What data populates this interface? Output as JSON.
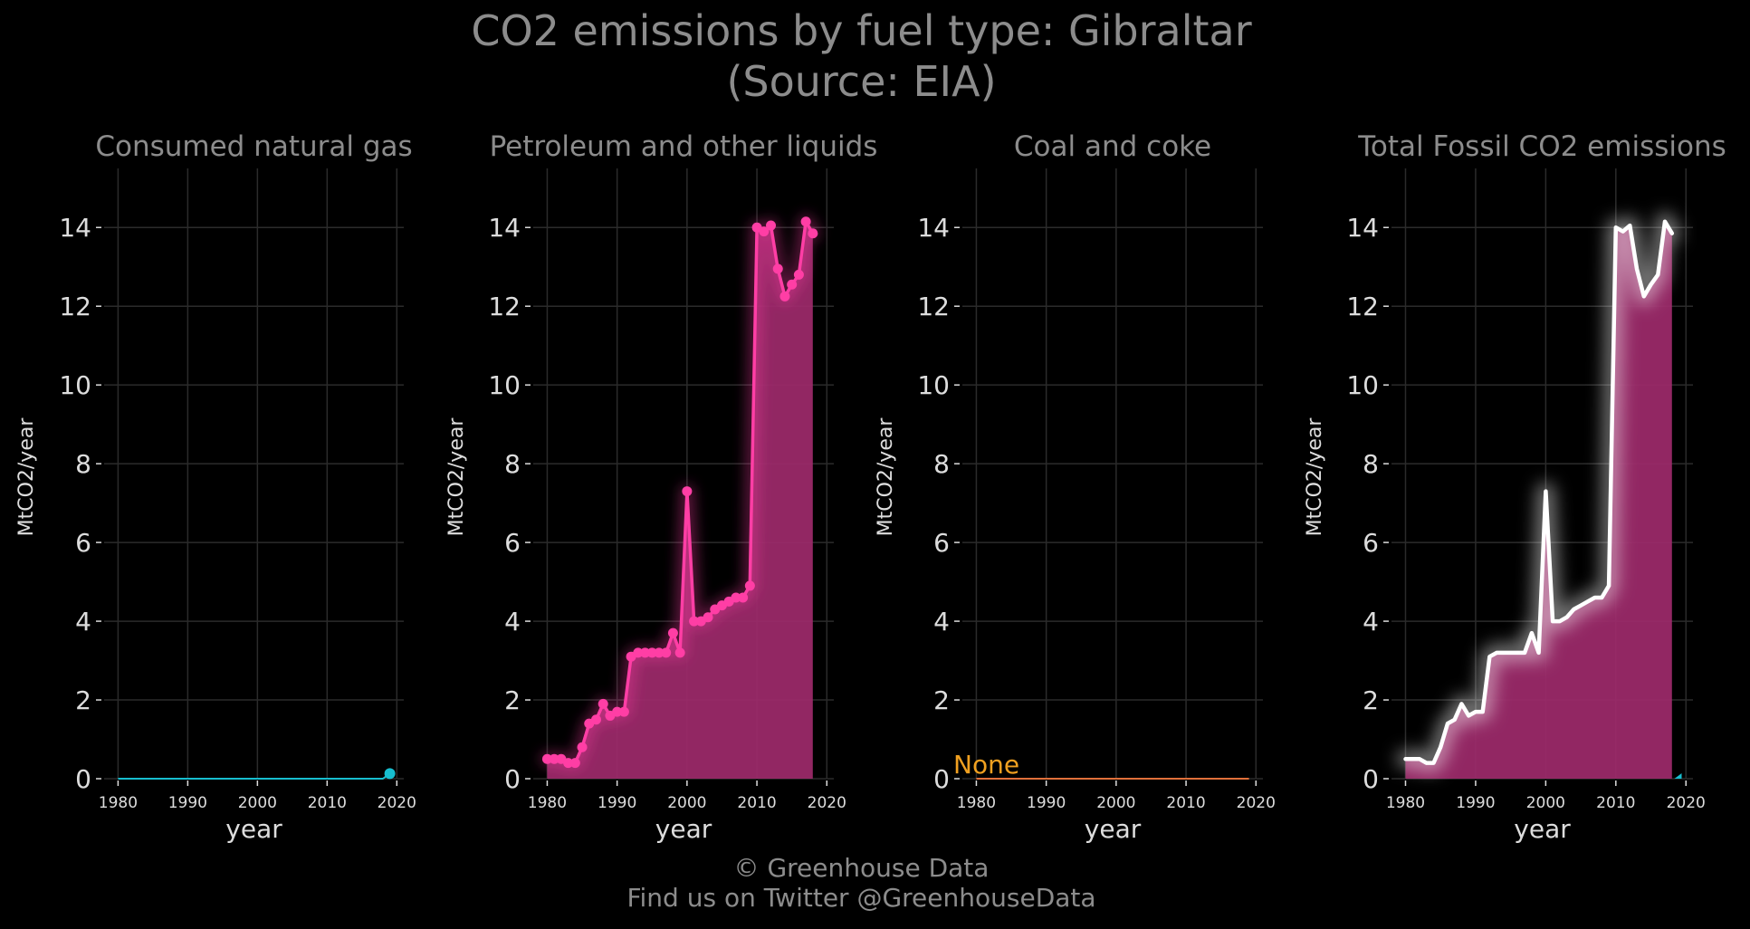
{
  "header": {
    "title_line1": "CO2 emissions by fuel type: Gibraltar",
    "title_line2": "(Source: EIA)"
  },
  "footer": {
    "credit": "© Greenhouse Data",
    "twitter": "Find us on Twitter @GreenhouseData"
  },
  "colors": {
    "background": "#000000",
    "grid": "#2b2b2b",
    "text": "#8c8c8c",
    "tick_text": "#dddddd",
    "gas": "#17becf",
    "petroleum_line": "#ff3ea5",
    "petroleum_fill": "#9e2a6b",
    "coal": "#e0703a",
    "coal_note": "#f0a020",
    "total_line": "#ffffff"
  },
  "chart_data": [
    {
      "type": "line",
      "title": "Consumed natural gas",
      "xlabel": "year",
      "ylabel": "MtCO2/year",
      "xlim": [
        1978,
        2021
      ],
      "ylim": [
        0,
        15.5
      ],
      "xticks": [
        1980,
        1990,
        2000,
        2010,
        2020
      ],
      "yticks": [
        0,
        2,
        4,
        6,
        8,
        10,
        12,
        14
      ],
      "grid": true,
      "series": [
        {
          "color": "#17becf",
          "x": [
            1980,
            1981,
            1982,
            1983,
            1984,
            1985,
            1986,
            1987,
            1988,
            1989,
            1990,
            1991,
            1992,
            1993,
            1994,
            1995,
            1996,
            1997,
            1998,
            1999,
            2000,
            2001,
            2002,
            2003,
            2004,
            2005,
            2006,
            2007,
            2008,
            2009,
            2010,
            2011,
            2012,
            2013,
            2014,
            2015,
            2016,
            2017,
            2018,
            2019
          ],
          "values": [
            0,
            0,
            0,
            0,
            0,
            0,
            0,
            0,
            0,
            0,
            0,
            0,
            0,
            0,
            0,
            0,
            0,
            0,
            0,
            0,
            0,
            0,
            0,
            0,
            0,
            0,
            0,
            0,
            0,
            0,
            0,
            0,
            0,
            0,
            0,
            0,
            0,
            0,
            0,
            0.13
          ]
        }
      ]
    },
    {
      "type": "area",
      "title": "Petroleum and other liquids",
      "xlabel": "year",
      "ylabel": "MtCO2/year",
      "xlim": [
        1978,
        2021
      ],
      "ylim": [
        0,
        15.5
      ],
      "xticks": [
        1980,
        1990,
        2000,
        2010,
        2020
      ],
      "yticks": [
        0,
        2,
        4,
        6,
        8,
        10,
        12,
        14
      ],
      "grid": true,
      "series": [
        {
          "color": "#ff3ea5",
          "x": [
            1980,
            1981,
            1982,
            1983,
            1984,
            1985,
            1986,
            1987,
            1988,
            1989,
            1990,
            1991,
            1992,
            1993,
            1994,
            1995,
            1996,
            1997,
            1998,
            1999,
            2000,
            2001,
            2002,
            2003,
            2004,
            2005,
            2006,
            2007,
            2008,
            2009,
            2010,
            2011,
            2012,
            2013,
            2014,
            2015,
            2016,
            2017,
            2018
          ],
          "values": [
            0.5,
            0.5,
            0.5,
            0.4,
            0.4,
            0.8,
            1.4,
            1.5,
            1.9,
            1.6,
            1.7,
            1.7,
            3.1,
            3.2,
            3.2,
            3.2,
            3.2,
            3.2,
            3.7,
            3.2,
            7.3,
            4.0,
            4.0,
            4.1,
            4.3,
            4.4,
            4.5,
            4.6,
            4.6,
            4.9,
            14.0,
            13.9,
            14.05,
            12.95,
            12.25,
            12.55,
            12.8,
            14.15,
            13.85
          ]
        }
      ]
    },
    {
      "type": "line",
      "title": "Coal and coke",
      "xlabel": "year",
      "ylabel": "MtCO2/year",
      "xlim": [
        1978,
        2021
      ],
      "ylim": [
        0,
        15.5
      ],
      "xticks": [
        1980,
        1990,
        2000,
        2010,
        2020
      ],
      "yticks": [
        0,
        2,
        4,
        6,
        8,
        10,
        12,
        14
      ],
      "grid": true,
      "annotation": "None",
      "series": [
        {
          "color": "#e0703a",
          "x": [
            1980,
            2019
          ],
          "values": [
            0,
            0
          ]
        }
      ]
    },
    {
      "type": "area",
      "title": "Total Fossil CO2 emissions",
      "xlabel": "year",
      "ylabel": "MtCO2/year",
      "xlim": [
        1978,
        2021
      ],
      "ylim": [
        0,
        15.5
      ],
      "xticks": [
        1980,
        1990,
        2000,
        2010,
        2020
      ],
      "yticks": [
        0,
        2,
        4,
        6,
        8,
        10,
        12,
        14
      ],
      "grid": true,
      "series": [
        {
          "color": "#ffffff",
          "x": [
            1980,
            1981,
            1982,
            1983,
            1984,
            1985,
            1986,
            1987,
            1988,
            1989,
            1990,
            1991,
            1992,
            1993,
            1994,
            1995,
            1996,
            1997,
            1998,
            1999,
            2000,
            2001,
            2002,
            2003,
            2004,
            2005,
            2006,
            2007,
            2008,
            2009,
            2010,
            2011,
            2012,
            2013,
            2014,
            2015,
            2016,
            2017,
            2018
          ],
          "values": [
            0.5,
            0.5,
            0.5,
            0.4,
            0.4,
            0.8,
            1.4,
            1.5,
            1.9,
            1.6,
            1.7,
            1.7,
            3.1,
            3.2,
            3.2,
            3.2,
            3.2,
            3.2,
            3.7,
            3.2,
            7.3,
            4.0,
            4.0,
            4.1,
            4.3,
            4.4,
            4.5,
            4.6,
            4.6,
            4.9,
            14.0,
            13.9,
            14.05,
            12.95,
            12.25,
            12.55,
            12.8,
            14.15,
            13.85
          ]
        }
      ]
    }
  ]
}
